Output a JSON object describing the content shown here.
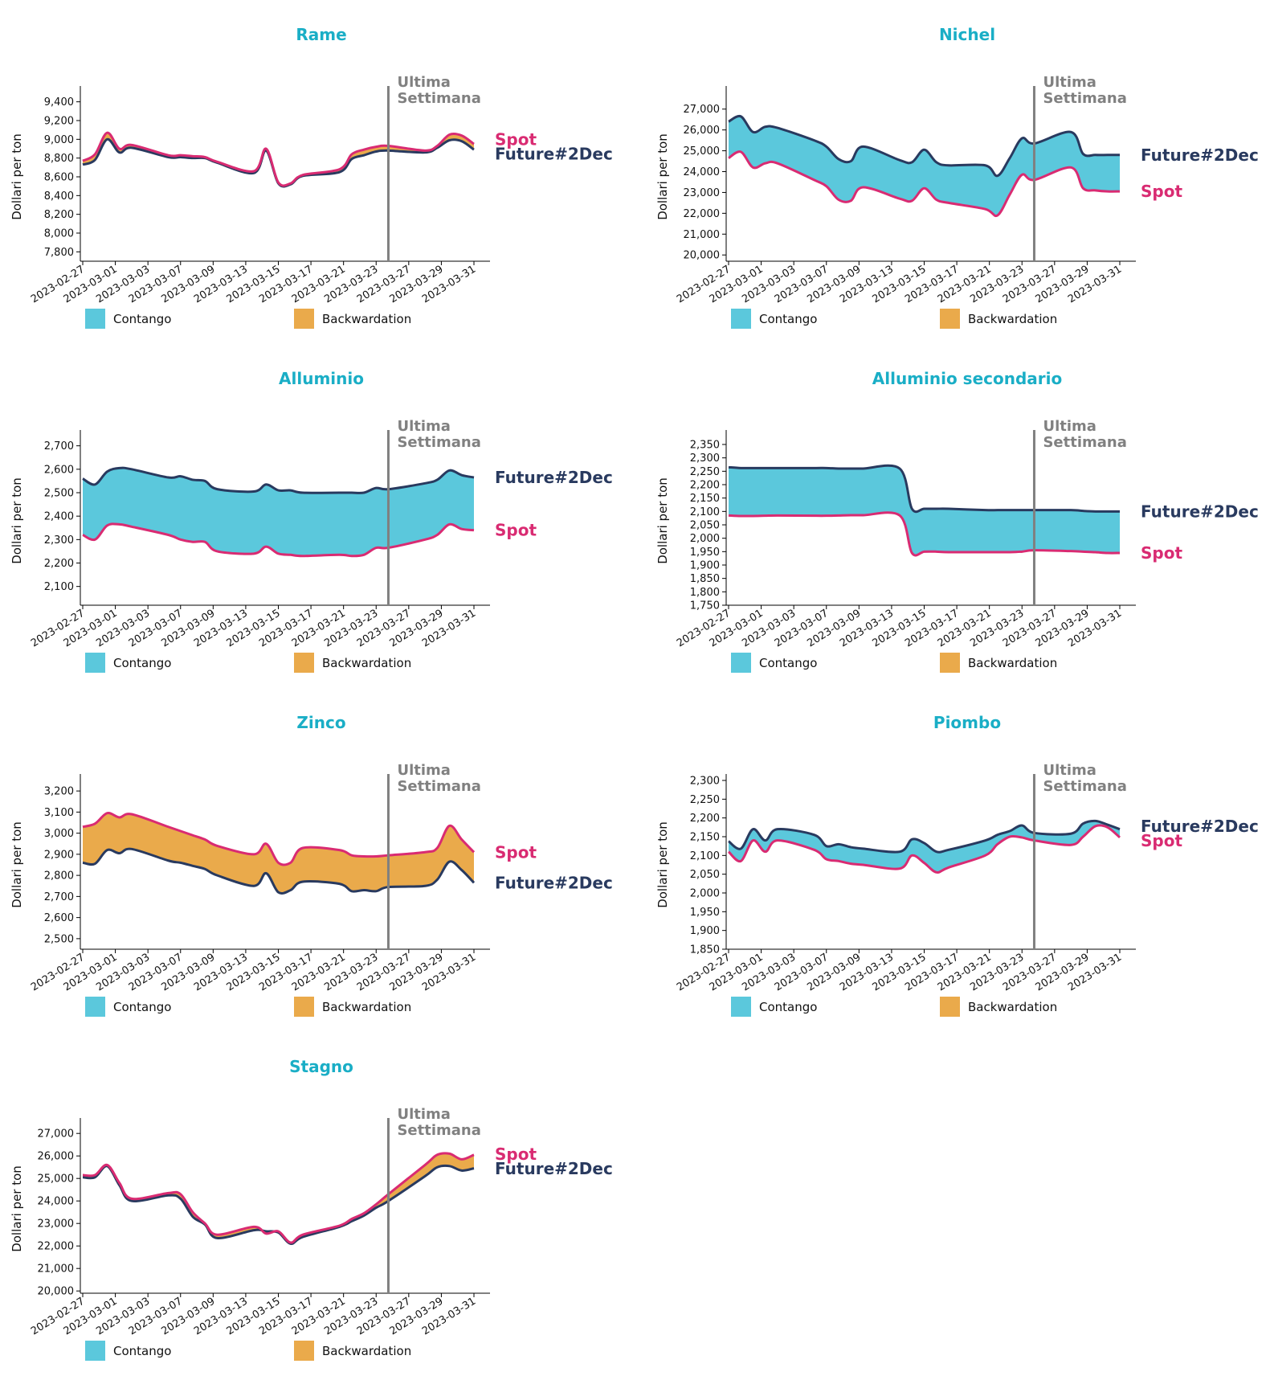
{
  "page": {
    "contango_color": "#5bc8dc",
    "backwardation_color": "#eaaa4b",
    "spot_color": "#d92b72",
    "future_color": "#293a5f",
    "week_line_color": "#808080",
    "title_color": "#1aaec6"
  },
  "chart_data": [
    {
      "type": "area",
      "title": "Rame",
      "ylabel": "Dollari per ton",
      "ylim": [
        7700,
        9500
      ],
      "yticks": [
        7800,
        8000,
        8200,
        8400,
        8600,
        8800,
        9000,
        9200,
        9400
      ],
      "ytick_labels": [
        "7,800",
        "8,000",
        "8,200",
        "8,400",
        "8,600",
        "8,800",
        "9,000",
        "9,200",
        "9,400"
      ],
      "x_ticks": [
        "2023-02-27",
        "2023-03-01",
        "2023-03-03",
        "2023-03-07",
        "2023-03-09",
        "2023-03-13",
        "2023-03-15",
        "2023-03-17",
        "2023-03-21",
        "2023-03-23",
        "2023-03-27",
        "2023-03-29",
        "2023-03-31"
      ],
      "x": [
        "2023-02-27",
        "2023-02-28",
        "2023-03-01",
        "2023-03-02",
        "2023-03-03",
        "2023-03-06",
        "2023-03-07",
        "2023-03-08",
        "2023-03-09",
        "2023-03-10",
        "2023-03-13",
        "2023-03-14",
        "2023-03-15",
        "2023-03-16",
        "2023-03-17",
        "2023-03-20",
        "2023-03-21",
        "2023-03-22",
        "2023-03-23",
        "2023-03-24",
        "2023-03-27",
        "2023-03-28",
        "2023-03-29",
        "2023-03-30",
        "2023-03-31"
      ],
      "series": [
        {
          "name": "Spot",
          "values": [
            8770,
            8840,
            9070,
            8900,
            8940,
            8830,
            8830,
            8820,
            8810,
            8760,
            8660,
            8900,
            8540,
            8530,
            8620,
            8680,
            8840,
            8890,
            8920,
            8930,
            8880,
            8930,
            9050,
            9040,
            8950
          ]
        },
        {
          "name": "Future#2Dec",
          "values": [
            8730,
            8780,
            9000,
            8860,
            8910,
            8810,
            8810,
            8800,
            8800,
            8750,
            8640,
            8880,
            8530,
            8520,
            8610,
            8650,
            8790,
            8830,
            8870,
            8880,
            8860,
            8910,
            8990,
            8980,
            8890
          ]
        }
      ],
      "week_marker": {
        "x": "2023-03-24",
        "label_line1": "Ultima",
        "label_line2": "Settimana"
      },
      "legend": [
        "Contango",
        "Backwardation"
      ]
    },
    {
      "type": "area",
      "title": "Nichel",
      "ylabel": "Dollari per ton",
      "ylim": [
        19700,
        27800
      ],
      "yticks": [
        20000,
        21000,
        22000,
        23000,
        24000,
        25000,
        26000,
        27000
      ],
      "ytick_labels": [
        "20,000",
        "21,000",
        "22,000",
        "23,000",
        "24,000",
        "25,000",
        "26,000",
        "27,000"
      ],
      "x_ticks": [
        "2023-02-27",
        "2023-03-01",
        "2023-03-03",
        "2023-03-07",
        "2023-03-09",
        "2023-03-13",
        "2023-03-15",
        "2023-03-17",
        "2023-03-21",
        "2023-03-23",
        "2023-03-27",
        "2023-03-29",
        "2023-03-31"
      ],
      "x": [
        "2023-02-27",
        "2023-02-28",
        "2023-03-01",
        "2023-03-02",
        "2023-03-03",
        "2023-03-06",
        "2023-03-07",
        "2023-03-08",
        "2023-03-09",
        "2023-03-10",
        "2023-03-13",
        "2023-03-14",
        "2023-03-15",
        "2023-03-16",
        "2023-03-17",
        "2023-03-20",
        "2023-03-21",
        "2023-03-22",
        "2023-03-23",
        "2023-03-24",
        "2023-03-27",
        "2023-03-28",
        "2023-03-29",
        "2023-03-30",
        "2023-03-31"
      ],
      "series": [
        {
          "name": "Spot",
          "values": [
            24650,
            24950,
            24200,
            24400,
            24400,
            23600,
            23300,
            22650,
            22600,
            23250,
            22700,
            22600,
            23200,
            22650,
            22500,
            22200,
            21900,
            22900,
            23850,
            23600,
            24200,
            23200,
            23100,
            23050,
            23050
          ]
        },
        {
          "name": "Future#2Dec",
          "values": [
            26400,
            26650,
            25900,
            26150,
            26100,
            25500,
            25200,
            24600,
            24500,
            25200,
            24550,
            24450,
            25050,
            24450,
            24300,
            24300,
            23800,
            24650,
            25600,
            25350,
            25900,
            24850,
            24800,
            24800,
            24800
          ]
        }
      ],
      "week_marker": {
        "x": "2023-03-24",
        "label_line1": "Ultima",
        "label_line2": "Settimana"
      },
      "legend": [
        "Contango",
        "Backwardation"
      ]
    },
    {
      "type": "area",
      "title": "Alluminio",
      "ylabel": "Dollari per ton",
      "ylim": [
        2020,
        2740
      ],
      "yticks": [
        2100,
        2200,
        2300,
        2400,
        2500,
        2600,
        2700
      ],
      "ytick_labels": [
        "2,100",
        "2,200",
        "2,300",
        "2,400",
        "2,500",
        "2,600",
        "2,700"
      ],
      "x_ticks": [
        "2023-02-27",
        "2023-03-01",
        "2023-03-03",
        "2023-03-07",
        "2023-03-09",
        "2023-03-13",
        "2023-03-15",
        "2023-03-17",
        "2023-03-21",
        "2023-03-23",
        "2023-03-27",
        "2023-03-29",
        "2023-03-31"
      ],
      "x": [
        "2023-02-27",
        "2023-02-28",
        "2023-03-01",
        "2023-03-02",
        "2023-03-03",
        "2023-03-06",
        "2023-03-07",
        "2023-03-08",
        "2023-03-09",
        "2023-03-10",
        "2023-03-13",
        "2023-03-14",
        "2023-03-15",
        "2023-03-16",
        "2023-03-17",
        "2023-03-20",
        "2023-03-21",
        "2023-03-22",
        "2023-03-23",
        "2023-03-24",
        "2023-03-27",
        "2023-03-28",
        "2023-03-29",
        "2023-03-30",
        "2023-03-31"
      ],
      "series": [
        {
          "name": "Spot",
          "values": [
            2320,
            2300,
            2360,
            2365,
            2355,
            2320,
            2300,
            2290,
            2290,
            2250,
            2240,
            2270,
            2240,
            2235,
            2230,
            2235,
            2230,
            2235,
            2265,
            2265,
            2300,
            2320,
            2365,
            2345,
            2340
          ]
        },
        {
          "name": "Future#2Dec",
          "values": [
            2560,
            2535,
            2590,
            2605,
            2600,
            2565,
            2570,
            2555,
            2550,
            2515,
            2505,
            2535,
            2510,
            2510,
            2500,
            2500,
            2500,
            2500,
            2520,
            2515,
            2540,
            2555,
            2595,
            2575,
            2565
          ]
        }
      ],
      "week_marker": {
        "x": "2023-03-24",
        "label_line1": "Ultima",
        "label_line2": "Settimana"
      },
      "legend": [
        "Contango",
        "Backwardation"
      ]
    },
    {
      "type": "area",
      "title": "Alluminio secondario",
      "ylabel": "Dollari per ton",
      "ylim": [
        1750,
        2380
      ],
      "yticks": [
        1750,
        1800,
        1850,
        1900,
        1950,
        2000,
        2050,
        2100,
        2150,
        2200,
        2250,
        2300,
        2350
      ],
      "ytick_labels": [
        "1,750",
        "1,800",
        "1,850",
        "1,900",
        "1,950",
        "2,000",
        "2,050",
        "2,100",
        "2,150",
        "2,200",
        "2,250",
        "2,300",
        "2,350"
      ],
      "x_ticks": [
        "2023-02-27",
        "2023-03-01",
        "2023-03-03",
        "2023-03-07",
        "2023-03-09",
        "2023-03-13",
        "2023-03-15",
        "2023-03-17",
        "2023-03-21",
        "2023-03-23",
        "2023-03-27",
        "2023-03-29",
        "2023-03-31"
      ],
      "x": [
        "2023-02-27",
        "2023-02-28",
        "2023-03-01",
        "2023-03-02",
        "2023-03-03",
        "2023-03-06",
        "2023-03-07",
        "2023-03-08",
        "2023-03-09",
        "2023-03-10",
        "2023-03-13",
        "2023-03-14",
        "2023-03-15",
        "2023-03-16",
        "2023-03-17",
        "2023-03-20",
        "2023-03-21",
        "2023-03-22",
        "2023-03-23",
        "2023-03-24",
        "2023-03-27",
        "2023-03-28",
        "2023-03-29",
        "2023-03-30",
        "2023-03-31"
      ],
      "series": [
        {
          "name": "Spot",
          "values": [
            2085,
            2083,
            2083,
            2084,
            2085,
            2084,
            2084,
            2085,
            2086,
            2086,
            2085,
            1945,
            1950,
            1950,
            1948,
            1948,
            1948,
            1948,
            1950,
            1955,
            1952,
            1950,
            1948,
            1945,
            1945
          ]
        },
        {
          "name": "Future#2Dec",
          "values": [
            2265,
            2262,
            2262,
            2262,
            2262,
            2262,
            2262,
            2260,
            2260,
            2260,
            2260,
            2110,
            2110,
            2110,
            2110,
            2105,
            2105,
            2105,
            2105,
            2105,
            2105,
            2102,
            2100,
            2100,
            2100
          ]
        }
      ],
      "week_marker": {
        "x": "2023-03-24",
        "label_line1": "Ultima",
        "label_line2": "Settimana"
      },
      "legend": [
        "Contango",
        "Backwardation"
      ]
    },
    {
      "type": "area",
      "title": "Zinco",
      "ylabel": "Dollari per ton",
      "ylim": [
        2450,
        3250
      ],
      "yticks": [
        2500,
        2600,
        2700,
        2800,
        2900,
        3000,
        3100,
        3200
      ],
      "ytick_labels": [
        "2,500",
        "2,600",
        "2,700",
        "2,800",
        "2,900",
        "3,000",
        "3,100",
        "3,200"
      ],
      "x_ticks": [
        "2023-02-27",
        "2023-03-01",
        "2023-03-03",
        "2023-03-07",
        "2023-03-09",
        "2023-03-13",
        "2023-03-15",
        "2023-03-17",
        "2023-03-21",
        "2023-03-23",
        "2023-03-27",
        "2023-03-29",
        "2023-03-31"
      ],
      "x": [
        "2023-02-27",
        "2023-02-28",
        "2023-03-01",
        "2023-03-02",
        "2023-03-03",
        "2023-03-06",
        "2023-03-07",
        "2023-03-08",
        "2023-03-09",
        "2023-03-10",
        "2023-03-13",
        "2023-03-14",
        "2023-03-15",
        "2023-03-16",
        "2023-03-17",
        "2023-03-20",
        "2023-03-21",
        "2023-03-22",
        "2023-03-23",
        "2023-03-24",
        "2023-03-27",
        "2023-03-28",
        "2023-03-29",
        "2023-03-30",
        "2023-03-31"
      ],
      "series": [
        {
          "name": "Spot",
          "values": [
            3030,
            3045,
            3095,
            3075,
            3090,
            3030,
            3010,
            2990,
            2970,
            2940,
            2900,
            2950,
            2860,
            2860,
            2930,
            2920,
            2895,
            2890,
            2890,
            2895,
            2910,
            2930,
            3035,
            2970,
            2910
          ]
        },
        {
          "name": "Future#2Dec",
          "values": [
            2860,
            2855,
            2920,
            2905,
            2925,
            2870,
            2860,
            2845,
            2830,
            2800,
            2750,
            2810,
            2720,
            2730,
            2770,
            2760,
            2725,
            2730,
            2725,
            2745,
            2750,
            2780,
            2865,
            2825,
            2765
          ]
        }
      ],
      "week_marker": {
        "x": "2023-03-24",
        "label_line1": "Ultima",
        "label_line2": "Settimana"
      },
      "legend": [
        "Contango",
        "Backwardation"
      ]
    },
    {
      "type": "area",
      "title": "Piombo",
      "ylabel": "Dollari per ton",
      "ylim": [
        1850,
        2300
      ],
      "yticks": [
        1850,
        1900,
        1950,
        2000,
        2050,
        2100,
        2150,
        2200,
        2250,
        2300
      ],
      "ytick_labels": [
        "1,850",
        "1,900",
        "1,950",
        "2,000",
        "2,050",
        "2,100",
        "2,150",
        "2,200",
        "2,250",
        "2,300"
      ],
      "x_ticks": [
        "2023-02-27",
        "2023-03-01",
        "2023-03-03",
        "2023-03-07",
        "2023-03-09",
        "2023-03-13",
        "2023-03-15",
        "2023-03-17",
        "2023-03-21",
        "2023-03-23",
        "2023-03-27",
        "2023-03-29",
        "2023-03-31"
      ],
      "x": [
        "2023-02-27",
        "2023-02-28",
        "2023-03-01",
        "2023-03-02",
        "2023-03-03",
        "2023-03-06",
        "2023-03-07",
        "2023-03-08",
        "2023-03-09",
        "2023-03-10",
        "2023-03-13",
        "2023-03-14",
        "2023-03-15",
        "2023-03-16",
        "2023-03-17",
        "2023-03-20",
        "2023-03-21",
        "2023-03-22",
        "2023-03-23",
        "2023-03-24",
        "2023-03-27",
        "2023-03-28",
        "2023-03-29",
        "2023-03-30",
        "2023-03-31"
      ],
      "series": [
        {
          "name": "Spot",
          "values": [
            2110,
            2085,
            2140,
            2110,
            2140,
            2115,
            2090,
            2085,
            2078,
            2075,
            2065,
            2100,
            2080,
            2055,
            2068,
            2100,
            2130,
            2150,
            2148,
            2140,
            2128,
            2150,
            2178,
            2175,
            2148
          ]
        },
        {
          "name": "Future#2Dec",
          "values": [
            2138,
            2118,
            2170,
            2140,
            2170,
            2155,
            2125,
            2130,
            2122,
            2118,
            2110,
            2143,
            2133,
            2110,
            2115,
            2140,
            2155,
            2165,
            2180,
            2160,
            2158,
            2185,
            2192,
            2182,
            2170
          ]
        }
      ],
      "week_marker": {
        "x": "2023-03-24",
        "label_line1": "Ultima",
        "label_line2": "Settimana"
      },
      "legend": [
        "Contango",
        "Backwardation"
      ]
    },
    {
      "type": "area",
      "title": "Stagno",
      "ylabel": "Dollari per ton",
      "ylim": [
        19900,
        27400
      ],
      "yticks": [
        20000,
        21000,
        22000,
        23000,
        24000,
        25000,
        26000,
        27000
      ],
      "ytick_labels": [
        "20,000",
        "21,000",
        "22,000",
        "23,000",
        "24,000",
        "25,000",
        "26,000",
        "27,000"
      ],
      "x_ticks": [
        "2023-02-27",
        "2023-03-01",
        "2023-03-03",
        "2023-03-07",
        "2023-03-09",
        "2023-03-13",
        "2023-03-15",
        "2023-03-17",
        "2023-03-21",
        "2023-03-23",
        "2023-03-27",
        "2023-03-29",
        "2023-03-31"
      ],
      "x": [
        "2023-02-27",
        "2023-02-28",
        "2023-03-01",
        "2023-03-02",
        "2023-03-03",
        "2023-03-06",
        "2023-03-07",
        "2023-03-08",
        "2023-03-09",
        "2023-03-10",
        "2023-03-13",
        "2023-03-14",
        "2023-03-15",
        "2023-03-16",
        "2023-03-17",
        "2023-03-20",
        "2023-03-21",
        "2023-03-22",
        "2023-03-23",
        "2023-03-24",
        "2023-03-27",
        "2023-03-28",
        "2023-03-29",
        "2023-03-30",
        "2023-03-31"
      ],
      "series": [
        {
          "name": "Spot",
          "values": [
            25150,
            25150,
            25600,
            24800,
            24100,
            24350,
            24300,
            23500,
            23000,
            22500,
            22850,
            22550,
            22650,
            22150,
            22500,
            22900,
            23200,
            23450,
            23850,
            24300,
            25600,
            26050,
            26100,
            25850,
            26050
          ]
        },
        {
          "name": "Future#2Dec",
          "values": [
            25050,
            25050,
            25550,
            24700,
            24000,
            24250,
            24100,
            23300,
            22950,
            22350,
            22700,
            22650,
            22600,
            22100,
            22400,
            22850,
            23100,
            23350,
            23700,
            24000,
            25100,
            25500,
            25550,
            25350,
            25450
          ]
        }
      ],
      "week_marker": {
        "x": "2023-03-24",
        "label_line1": "Ultima",
        "label_line2": "Settimana"
      },
      "legend": [
        "Contango",
        "Backwardation"
      ]
    }
  ]
}
